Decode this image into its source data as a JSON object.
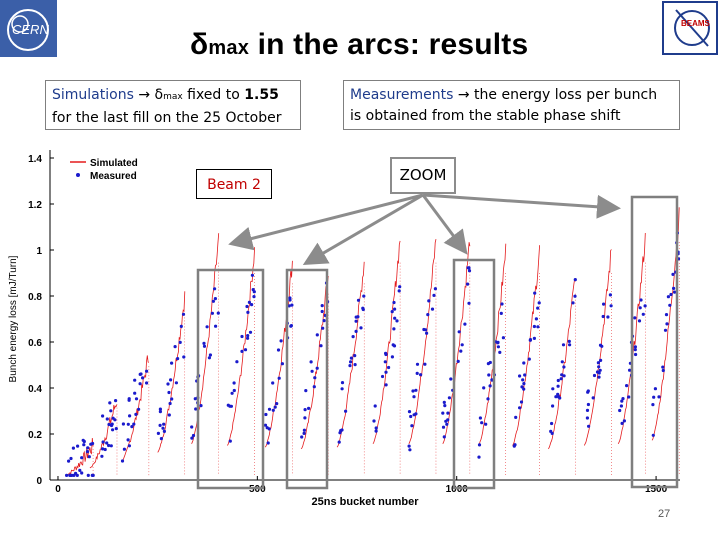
{
  "title": {
    "delta": "δ",
    "sub": "max",
    "rest": " in the arcs: results"
  },
  "logo_right_text": "BEAMS",
  "box_left": {
    "line1_pre": "Simulations ",
    "arrow": "→",
    "delta": " δ",
    "sub": "max",
    "line1_post": " fixed to ",
    "value": "1.55",
    "line2": "for the last fill on the 25 October"
  },
  "box_right": {
    "line1_pre": "Measurements ",
    "arrow": "→",
    "line1_post": " the energy loss per bunch",
    "line2": "is obtained from the stable phase shift"
  },
  "beam_label": "Beam 2",
  "zoom_label": "ZOOM",
  "page_number": "27",
  "colors": {
    "simulated": "#e41a1c",
    "measured": "#1a1acc",
    "zoom_frame": "#7f7f7f",
    "arrow": "#8c8c8c"
  },
  "chart_data": {
    "type": "scatter",
    "xlabel": "25ns bucket number",
    "ylabel": "Bunch energy loss [mJ/Turn]",
    "xlim": [
      -20,
      1560
    ],
    "ylim": [
      0,
      1.4
    ],
    "x_ticks": [
      "0",
      "500",
      "1000",
      "1500"
    ],
    "y_ticks": [
      "0",
      "0.2",
      "0.4",
      "0.6",
      "0.8",
      "1",
      "1.2",
      "1.4"
    ],
    "legend": {
      "position": "top-left",
      "entries": [
        "Simulated",
        "Measured"
      ]
    },
    "series": [
      {
        "name": "Simulated",
        "style": "line",
        "trains_start": [
          20,
          80,
          160,
          250,
          335,
          425,
          520,
          610,
          700,
          790,
          880,
          965,
          1055,
          1140,
          1230,
          1320,
          1405,
          1490
        ],
        "train_peak": [
          0.15,
          0.35,
          0.55,
          0.8,
          1.05,
          1.0,
          0.95,
          0.9,
          0.95,
          1.05,
          1.05,
          1.05,
          1.0,
          1.0,
          0.9,
          1.0,
          1.05,
          1.15
        ]
      },
      {
        "name": "Measured",
        "style": "markers",
        "trains_start": [
          20,
          80,
          160,
          250,
          335,
          425,
          520,
          610,
          700,
          790,
          880,
          965,
          1055,
          1140,
          1230,
          1320,
          1405,
          1490
        ],
        "train_level": [
          0.08,
          0.25,
          0.45,
          0.55,
          0.7,
          0.7,
          0.65,
          0.7,
          0.68,
          0.68,
          0.7,
          0.72,
          0.65,
          0.68,
          0.65,
          0.7,
          0.72,
          0.85
        ]
      }
    ]
  }
}
